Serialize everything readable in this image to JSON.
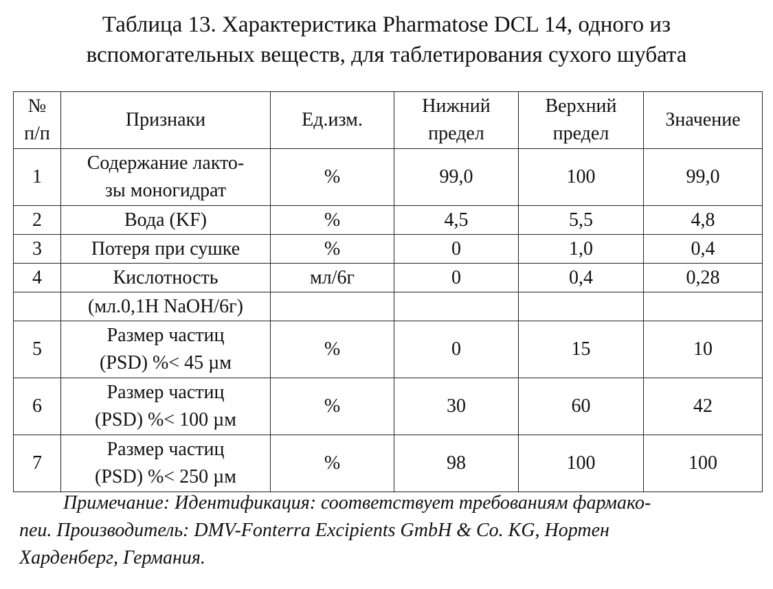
{
  "title": {
    "line1": "Таблица 13. Характеристика Pharmatose DCL 14, одного из",
    "line2": "вспомогательных веществ,  для таблетирования сухого шубата"
  },
  "table": {
    "headers": {
      "num_line1": "№",
      "num_line2": "п/п",
      "feature": "Признаки",
      "unit": "Ед.изм.",
      "lower_line1": "Нижний",
      "lower_line2": "предел",
      "upper_line1": "Верхний",
      "upper_line2": "предел",
      "value": "Значение"
    },
    "rows": [
      {
        "num": "1",
        "feature_line1": "Содержание лакто-",
        "feature_line2": "зы моногидрат",
        "unit": "%",
        "lower": "99,0",
        "upper": "100",
        "value": "99,0"
      },
      {
        "num": "2",
        "feature": "Вода (KF)",
        "unit": "%",
        "lower": "4,5",
        "upper": "5,5",
        "value": "4,8"
      },
      {
        "num": "3",
        "feature": "Потеря при сушке",
        "unit": "%",
        "lower": "0",
        "upper": "1,0",
        "value": "0,4"
      },
      {
        "num": "4",
        "feature": "Кислотность",
        "unit": "мл/6г",
        "lower": "0",
        "upper": "0,4",
        "value": "0,28"
      },
      {
        "num": "",
        "feature": "(мл.0,1Н NaOH/6г)",
        "unit": "",
        "lower": "",
        "upper": "",
        "value": ""
      },
      {
        "num": "5",
        "feature_line1": "Размер частиц",
        "feature_line2": "(PSD) %< 45 µм",
        "unit": "%",
        "lower": "0",
        "upper": "15",
        "value": "10"
      },
      {
        "num": "6",
        "feature_line1": "Размер частиц",
        "feature_line2": "(PSD) %< 100 µм",
        "unit": "%",
        "lower": "30",
        "upper": "60",
        "value": "42"
      },
      {
        "num": "7",
        "feature_line1": "Размер частиц",
        "feature_line2": "(PSD) %< 250 µм",
        "unit": "%",
        "lower": "98",
        "upper": "100",
        "value": "100"
      }
    ]
  },
  "note": {
    "line1": "Примечание: Идентификация: соответствует требованиям фармако-",
    "line2": "пеи.  Производитель:  DMV-Fonterra Excipients GmbH & Co. KG, Нортен",
    "line3": "Харденберг, Германия."
  }
}
